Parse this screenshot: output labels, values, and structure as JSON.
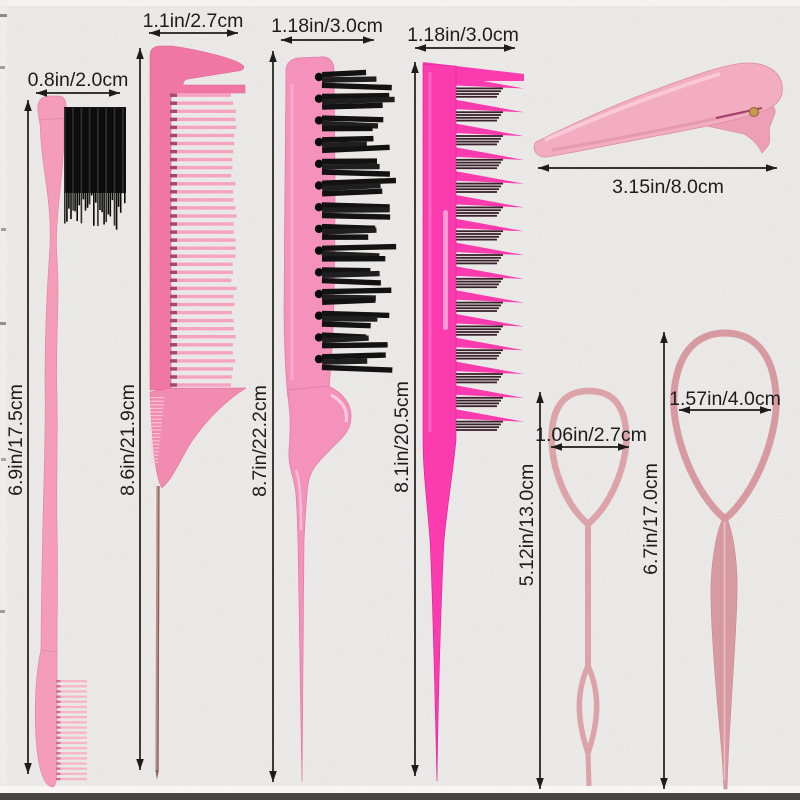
{
  "image_type": "hair styling tool set dimension diagram",
  "items": [
    {
      "name": "edge brush",
      "width_label": "0.8in/2.0cm",
      "length_label": "6.9in/17.5cm"
    },
    {
      "name": "rat tail comb",
      "width_label": "1.1in/2.7cm",
      "length_label": "8.6in/21.9cm"
    },
    {
      "name": "teasing brush",
      "width_label": "1.18in/3.0cm",
      "length_label": "8.7in/22.2cm"
    },
    {
      "name": "triple row tail comb",
      "width_label": "1.18in/3.0cm",
      "length_label": "8.1in/20.5cm"
    },
    {
      "name": "duckbill hair clip",
      "length_label": "3.15in/8.0cm"
    },
    {
      "name": "small hair tail tool",
      "width_label": "1.06in/2.7cm",
      "length_label": "5.12in/13.0cm"
    },
    {
      "name": "large hair tail tool",
      "width_label": "1.57in/4.0cm",
      "length_label": "6.7in/17.0cm"
    }
  ],
  "colors": {
    "background": "#e7e6e4",
    "annotation": "#1c1c1c",
    "pink_light": "#f49cba",
    "pink_medium": "#f077a3",
    "pink_teeth": "#f6a3c1",
    "pink_hot": "#fb3bae",
    "pink_clip": "#f2adc1",
    "rose_dusty": "#d89aa1",
    "bristle_black": "#121212",
    "metal_pin": "#b98e85",
    "gold_pin": "#c6994e"
  }
}
